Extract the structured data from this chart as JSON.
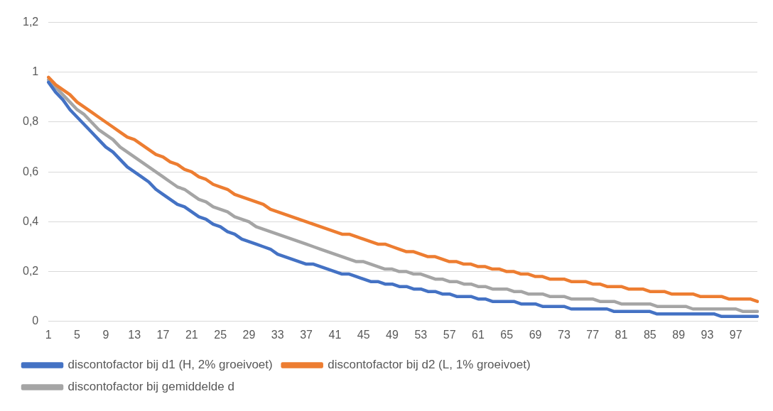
{
  "chart_data": {
    "type": "line",
    "categories": [
      "1",
      null,
      null,
      null,
      "5",
      null,
      null,
      null,
      "9",
      null,
      null,
      null,
      "13",
      null,
      null,
      null,
      "17",
      null,
      null,
      null,
      "21",
      null,
      null,
      null,
      "25",
      null,
      null,
      null,
      "29",
      null,
      null,
      null,
      "33",
      null,
      null,
      null,
      "37",
      null,
      null,
      null,
      "41",
      null,
      null,
      null,
      "45",
      null,
      null,
      null,
      "49",
      null,
      null,
      null,
      "53",
      null,
      null,
      null,
      "57",
      null,
      null,
      null,
      "61",
      null,
      null,
      null,
      "65",
      null,
      null,
      null,
      "69",
      null,
      null,
      null,
      "73",
      null,
      null,
      null,
      "77",
      null,
      null,
      null,
      "81",
      null,
      null,
      null,
      "85",
      null,
      null,
      null,
      "89",
      null,
      null,
      null,
      "93",
      null,
      null,
      null,
      "97",
      null,
      null,
      null
    ],
    "series": [
      {
        "name": "discontofactor bij d1 (H, 2% groeivoet)",
        "color": "#4472c4",
        "values": [
          0.96,
          0.92,
          0.89,
          0.85,
          0.82,
          0.79,
          0.76,
          0.73,
          0.7,
          0.68,
          0.65,
          0.62,
          0.6,
          0.58,
          0.56,
          0.53,
          0.51,
          0.49,
          0.47,
          0.46,
          0.44,
          0.42,
          0.41,
          0.39,
          0.38,
          0.36,
          0.35,
          0.33,
          0.32,
          0.31,
          0.3,
          0.29,
          0.27,
          0.26,
          0.25,
          0.24,
          0.23,
          0.23,
          0.22,
          0.21,
          0.2,
          0.19,
          0.19,
          0.18,
          0.17,
          0.16,
          0.16,
          0.15,
          0.15,
          0.14,
          0.14,
          0.13,
          0.13,
          0.12,
          0.12,
          0.11,
          0.11,
          0.1,
          0.1,
          0.1,
          0.09,
          0.09,
          0.08,
          0.08,
          0.08,
          0.08,
          0.07,
          0.07,
          0.07,
          0.06,
          0.06,
          0.06,
          0.06,
          0.05,
          0.05,
          0.05,
          0.05,
          0.05,
          0.05,
          0.04,
          0.04,
          0.04,
          0.04,
          0.04,
          0.04,
          0.03,
          0.03,
          0.03,
          0.03,
          0.03,
          0.03,
          0.03,
          0.03,
          0.03,
          0.02,
          0.02,
          0.02,
          0.02,
          0.02,
          0.02
        ]
      },
      {
        "name": "discontofactor bij d2 (L, 1% groeivoet)",
        "color": "#ed7d31",
        "values": [
          0.98,
          0.95,
          0.93,
          0.91,
          0.88,
          0.86,
          0.84,
          0.82,
          0.8,
          0.78,
          0.76,
          0.74,
          0.73,
          0.71,
          0.69,
          0.67,
          0.66,
          0.64,
          0.63,
          0.61,
          0.6,
          0.58,
          0.57,
          0.55,
          0.54,
          0.53,
          0.51,
          0.5,
          0.49,
          0.48,
          0.47,
          0.45,
          0.44,
          0.43,
          0.42,
          0.41,
          0.4,
          0.39,
          0.38,
          0.37,
          0.36,
          0.35,
          0.35,
          0.34,
          0.33,
          0.32,
          0.31,
          0.31,
          0.3,
          0.29,
          0.28,
          0.28,
          0.27,
          0.26,
          0.26,
          0.25,
          0.24,
          0.24,
          0.23,
          0.23,
          0.22,
          0.22,
          0.21,
          0.21,
          0.2,
          0.2,
          0.19,
          0.19,
          0.18,
          0.18,
          0.17,
          0.17,
          0.17,
          0.16,
          0.16,
          0.16,
          0.15,
          0.15,
          0.14,
          0.14,
          0.14,
          0.13,
          0.13,
          0.13,
          0.12,
          0.12,
          0.12,
          0.11,
          0.11,
          0.11,
          0.11,
          0.1,
          0.1,
          0.1,
          0.1,
          0.09,
          0.09,
          0.09,
          0.09,
          0.08
        ]
      },
      {
        "name": "discontofactor bij gemiddelde d",
        "color": "#a5a5a5",
        "values": [
          0.97,
          0.94,
          0.91,
          0.88,
          0.85,
          0.83,
          0.8,
          0.77,
          0.75,
          0.73,
          0.7,
          0.68,
          0.66,
          0.64,
          0.62,
          0.6,
          0.58,
          0.56,
          0.54,
          0.53,
          0.51,
          0.49,
          0.48,
          0.46,
          0.45,
          0.44,
          0.42,
          0.41,
          0.4,
          0.38,
          0.37,
          0.36,
          0.35,
          0.34,
          0.33,
          0.32,
          0.31,
          0.3,
          0.29,
          0.28,
          0.27,
          0.26,
          0.25,
          0.24,
          0.24,
          0.23,
          0.22,
          0.21,
          0.21,
          0.2,
          0.2,
          0.19,
          0.19,
          0.18,
          0.17,
          0.17,
          0.16,
          0.16,
          0.15,
          0.15,
          0.14,
          0.14,
          0.13,
          0.13,
          0.13,
          0.12,
          0.12,
          0.11,
          0.11,
          0.11,
          0.1,
          0.1,
          0.1,
          0.09,
          0.09,
          0.09,
          0.09,
          0.08,
          0.08,
          0.08,
          0.07,
          0.07,
          0.07,
          0.07,
          0.07,
          0.06,
          0.06,
          0.06,
          0.06,
          0.06,
          0.05,
          0.05,
          0.05,
          0.05,
          0.05,
          0.05,
          0.05,
          0.04,
          0.04,
          0.04
        ]
      }
    ],
    "ylim": [
      0,
      1.2
    ],
    "yticks": [
      0,
      {
        "value": 0.2,
        "label": "0,2"
      },
      {
        "value": 0.4,
        "label": "0,4"
      },
      {
        "value": 0.6,
        "label": "0,6"
      },
      {
        "value": 0.8,
        "label": "0,8"
      },
      1,
      {
        "value": 1.2,
        "label": "1,2"
      }
    ],
    "grid": "y",
    "legend": "bottom",
    "marker": "none",
    "line_style": "solid"
  }
}
